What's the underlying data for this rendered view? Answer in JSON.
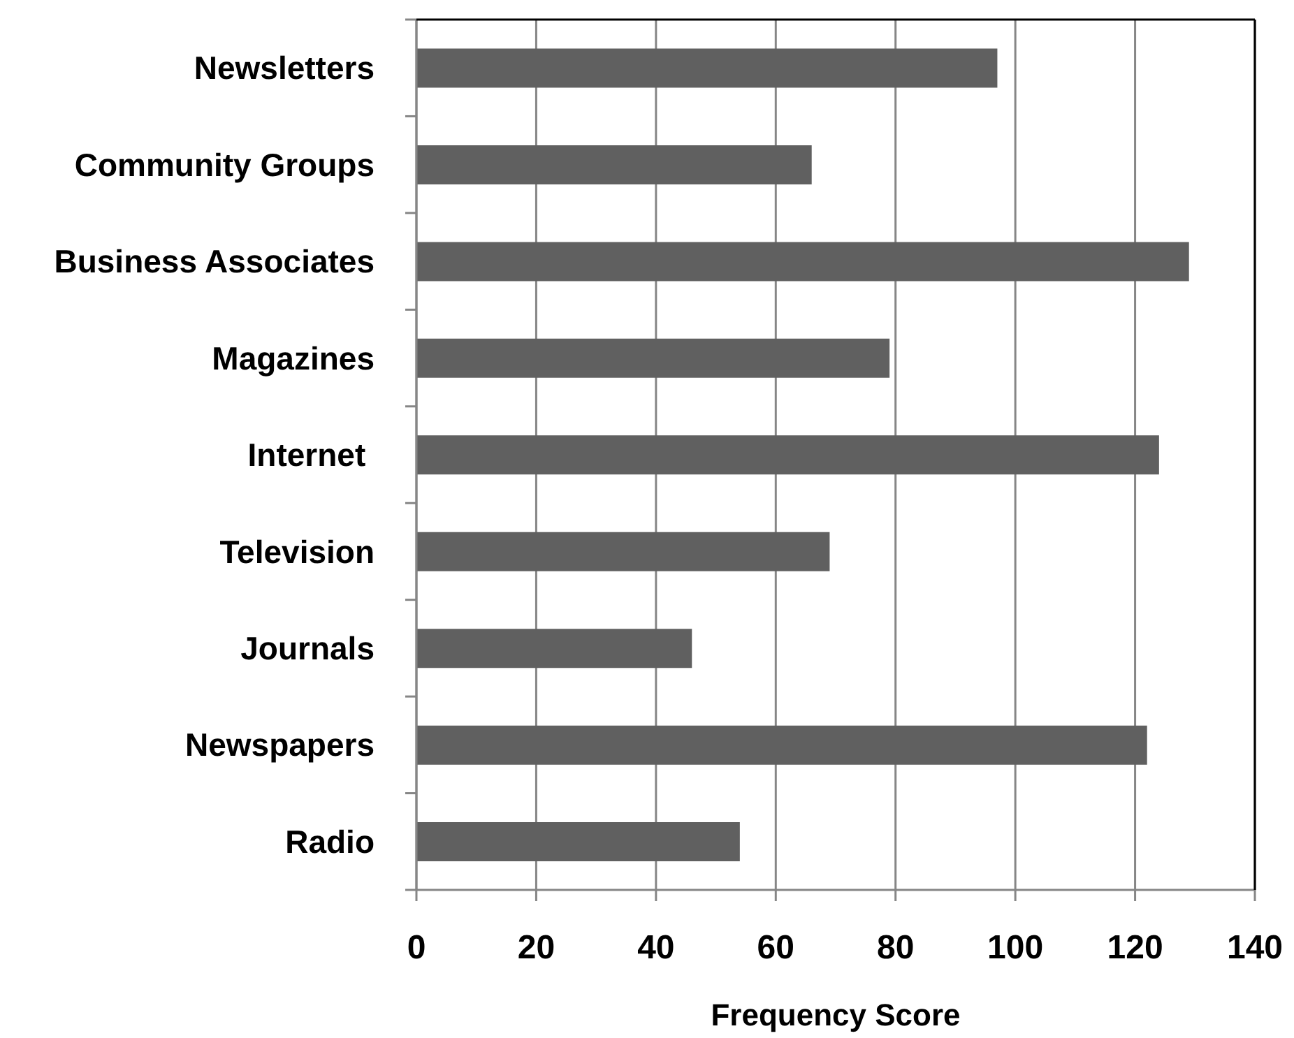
{
  "chart_data": {
    "type": "bar",
    "orientation": "horizontal",
    "xlabel": "Frequency Score",
    "categories": [
      "Newsletters",
      "Community Groups",
      "Business Associates",
      "Magazines",
      "Internet ",
      "Television",
      "Journals",
      "Newspapers",
      "Radio"
    ],
    "values": [
      97,
      66,
      129,
      79,
      124,
      69,
      46,
      122,
      54
    ],
    "color": "#606060",
    "xlim": [
      0,
      140
    ],
    "xticks": [
      0,
      20,
      40,
      60,
      80,
      100,
      120,
      140
    ],
    "grid": "x"
  }
}
